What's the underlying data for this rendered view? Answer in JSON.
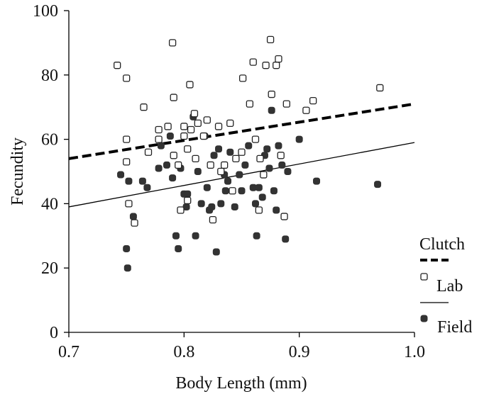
{
  "chart_data": {
    "type": "scatter",
    "title": "",
    "xlabel": "Body Length (mm)",
    "ylabel": "Fecundity",
    "xlim": [
      0.7,
      1.0
    ],
    "ylim": [
      0,
      100
    ],
    "x_ticks": [
      0.7,
      0.8,
      0.9,
      1.0
    ],
    "x_tick_labels": [
      "0.7",
      "0.8",
      "0.9",
      "1.0"
    ],
    "y_ticks": [
      0,
      20,
      40,
      60,
      80,
      100
    ],
    "y_tick_labels": [
      "0",
      "20",
      "40",
      "60",
      "80",
      "100"
    ],
    "grid": false,
    "legend_position": "right",
    "colors": {
      "axis": "#000000",
      "lab_marker_stroke": "#222222",
      "lab_marker_fill": "#ffffff",
      "field_marker_fill": "#333333",
      "lines": "#000000"
    },
    "lines": [
      {
        "name": "Clutch",
        "style": "dashed",
        "x": [
          0.7,
          1.0
        ],
        "y": [
          54,
          71
        ]
      },
      {
        "name": "",
        "style": "solid",
        "x": [
          0.7,
          1.0
        ],
        "y": [
          39,
          59
        ]
      }
    ],
    "series": [
      {
        "name": "Lab",
        "marker": "open-square",
        "points": [
          [
            0.742,
            83
          ],
          [
            0.75,
            79
          ],
          [
            0.75,
            60
          ],
          [
            0.75,
            53
          ],
          [
            0.752,
            40
          ],
          [
            0.757,
            34
          ],
          [
            0.765,
            70
          ],
          [
            0.769,
            56
          ],
          [
            0.778,
            60
          ],
          [
            0.778,
            63
          ],
          [
            0.786,
            64
          ],
          [
            0.79,
            90
          ],
          [
            0.791,
            73
          ],
          [
            0.791,
            55
          ],
          [
            0.795,
            52
          ],
          [
            0.797,
            38
          ],
          [
            0.8,
            61
          ],
          [
            0.8,
            64
          ],
          [
            0.803,
            57
          ],
          [
            0.803,
            41
          ],
          [
            0.805,
            77
          ],
          [
            0.806,
            63
          ],
          [
            0.809,
            68
          ],
          [
            0.81,
            54
          ],
          [
            0.812,
            65
          ],
          [
            0.817,
            61
          ],
          [
            0.82,
            66
          ],
          [
            0.823,
            52
          ],
          [
            0.825,
            35
          ],
          [
            0.83,
            64
          ],
          [
            0.832,
            50
          ],
          [
            0.835,
            52
          ],
          [
            0.84,
            65
          ],
          [
            0.842,
            44
          ],
          [
            0.845,
            54
          ],
          [
            0.85,
            56
          ],
          [
            0.851,
            79
          ],
          [
            0.857,
            71
          ],
          [
            0.86,
            84
          ],
          [
            0.862,
            60
          ],
          [
            0.865,
            38
          ],
          [
            0.866,
            54
          ],
          [
            0.869,
            49
          ],
          [
            0.871,
            83
          ],
          [
            0.875,
            91
          ],
          [
            0.876,
            74
          ],
          [
            0.88,
            83
          ],
          [
            0.882,
            85
          ],
          [
            0.884,
            55
          ],
          [
            0.887,
            36
          ],
          [
            0.889,
            71
          ],
          [
            0.906,
            69
          ],
          [
            0.912,
            72
          ],
          [
            0.97,
            76
          ]
        ]
      },
      {
        "name": "Field",
        "marker": "filled-square",
        "points": [
          [
            0.745,
            49
          ],
          [
            0.75,
            26
          ],
          [
            0.751,
            20
          ],
          [
            0.752,
            47
          ],
          [
            0.756,
            36
          ],
          [
            0.764,
            47
          ],
          [
            0.768,
            45
          ],
          [
            0.778,
            51
          ],
          [
            0.78,
            58
          ],
          [
            0.785,
            52
          ],
          [
            0.788,
            61
          ],
          [
            0.79,
            48
          ],
          [
            0.793,
            30
          ],
          [
            0.795,
            26
          ],
          [
            0.797,
            51
          ],
          [
            0.8,
            43
          ],
          [
            0.802,
            39
          ],
          [
            0.803,
            43
          ],
          [
            0.808,
            67
          ],
          [
            0.81,
            30
          ],
          [
            0.812,
            50
          ],
          [
            0.815,
            40
          ],
          [
            0.818,
            61
          ],
          [
            0.82,
            45
          ],
          [
            0.822,
            38
          ],
          [
            0.824,
            39
          ],
          [
            0.826,
            55
          ],
          [
            0.828,
            25
          ],
          [
            0.83,
            57
          ],
          [
            0.832,
            40
          ],
          [
            0.835,
            49
          ],
          [
            0.836,
            44
          ],
          [
            0.838,
            47
          ],
          [
            0.84,
            56
          ],
          [
            0.844,
            39
          ],
          [
            0.848,
            49
          ],
          [
            0.85,
            44
          ],
          [
            0.853,
            52
          ],
          [
            0.856,
            58
          ],
          [
            0.86,
            45
          ],
          [
            0.862,
            40
          ],
          [
            0.863,
            30
          ],
          [
            0.865,
            45
          ],
          [
            0.868,
            42
          ],
          [
            0.87,
            55
          ],
          [
            0.872,
            57
          ],
          [
            0.874,
            51
          ],
          [
            0.876,
            69
          ],
          [
            0.878,
            44
          ],
          [
            0.88,
            38
          ],
          [
            0.882,
            58
          ],
          [
            0.885,
            52
          ],
          [
            0.888,
            29
          ],
          [
            0.89,
            50
          ],
          [
            0.9,
            60
          ],
          [
            0.915,
            47
          ],
          [
            0.968,
            46
          ]
        ]
      }
    ]
  },
  "legend": {
    "clutch_label": "Clutch",
    "lab_label": "Lab",
    "field_label": "Field"
  }
}
